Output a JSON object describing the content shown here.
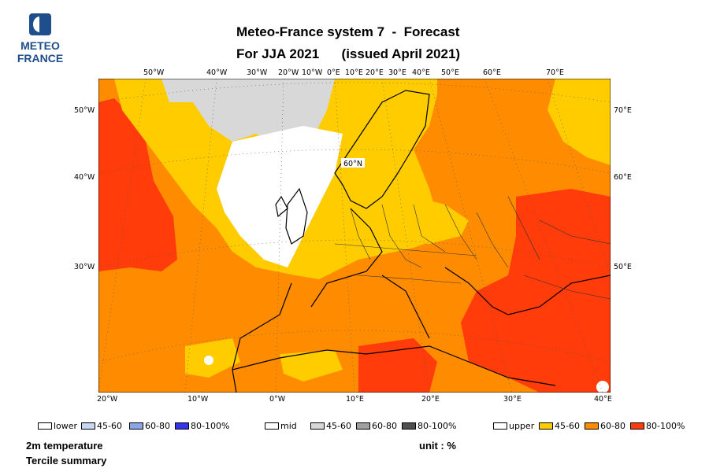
{
  "logo": {
    "line1": "METEO",
    "line2": "FRANCE"
  },
  "title": {
    "line1": "Meteo-France system 7  -  Forecast",
    "line2": "For JJA 2021      (issued April 2021)"
  },
  "top_longitude_ticks": [
    "50°W",
    "40°W",
    "30°W",
    "20°W",
    "10°W",
    "0°E",
    "10°E",
    "20°E",
    "30°E",
    "40°E",
    "50°E",
    "60°E",
    "70°E"
  ],
  "bottom_longitude_ticks": [
    "20°W",
    "10°W",
    "0°W",
    "10°E",
    "20°E",
    "30°E",
    "40°E"
  ],
  "left_latitude_ticks": [
    "50°W",
    "40°W",
    "30°W"
  ],
  "right_latitude_ticks": [
    "70°E",
    "60°E",
    "50°E"
  ],
  "map_label": "60°N",
  "legend": {
    "lower": {
      "label": "lower",
      "items": [
        "45-60",
        "60-80",
        "80-100%"
      ],
      "colors": [
        "#c8d8f0",
        "#8aa6e6",
        "#3333ee"
      ]
    },
    "mid": {
      "label": "mid",
      "items": [
        "45-60",
        "60-80",
        "80-100%"
      ],
      "colors": [
        "#d8d8d8",
        "#a0a0a0",
        "#505050"
      ]
    },
    "upper": {
      "label": "upper",
      "items": [
        "45-60",
        "60-80",
        "80-100%"
      ],
      "colors": [
        "#ffcc00",
        "#ff8c00",
        "#ff3c0a"
      ]
    }
  },
  "footer": {
    "variable": "2m temperature",
    "summary": "Tercile summary",
    "unit": "unit : %"
  },
  "colors": {
    "sea_background": "#ff8c00",
    "land_cold": "#ffcc00",
    "hot": "#ff3c0a",
    "mid_grey": "#d8d8d8",
    "logo_blue": "#1f4e8c"
  }
}
